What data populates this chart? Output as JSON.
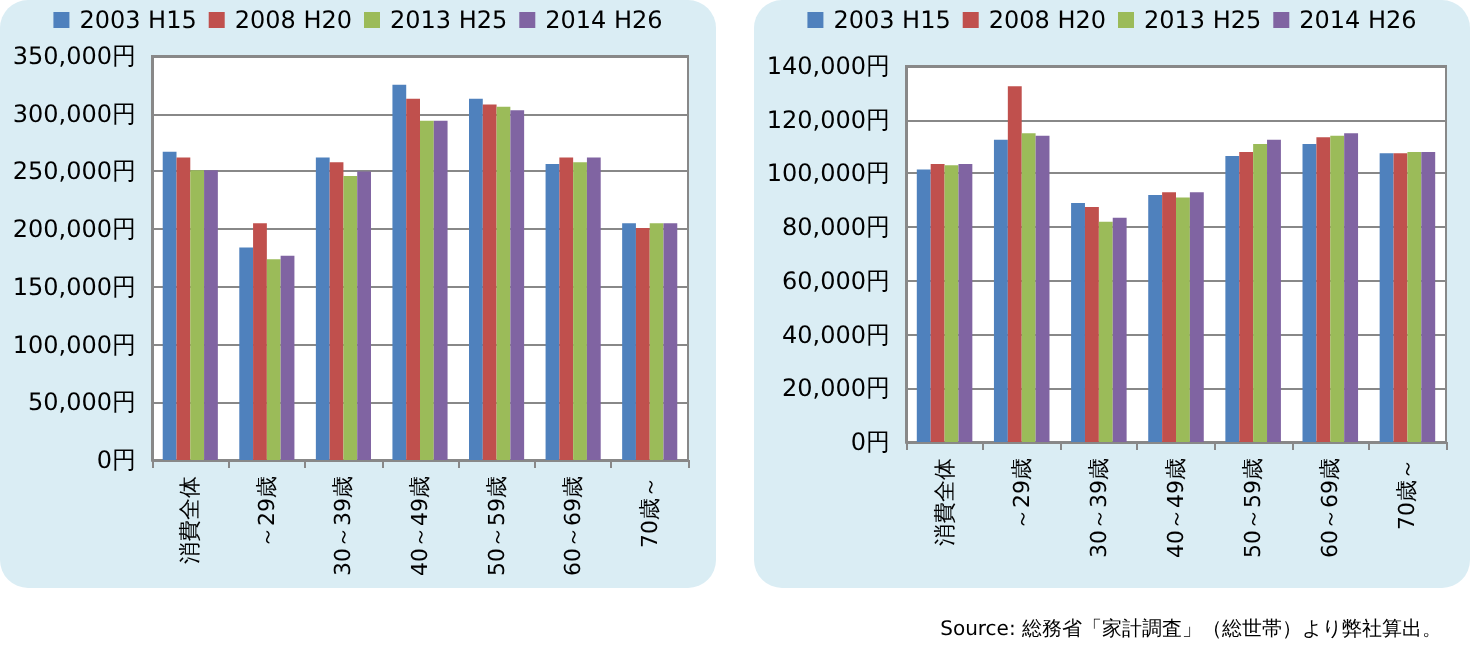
{
  "chart_data": [
    {
      "type": "bar",
      "categories": [
        "消費全体",
        "～29歳",
        "30～39歳",
        "40～49歳",
        "50～59歳",
        "60～69歳",
        "70歳～"
      ],
      "series": [
        {
          "name": "2003 H15",
          "color": "#4f81bd",
          "values": [
            267000,
            184000,
            262000,
            325000,
            313000,
            256500,
            205000
          ]
        },
        {
          "name": "2008 H20",
          "color": "#c0504d",
          "values": [
            262000,
            205000,
            258000,
            313000,
            308000,
            262000,
            201000
          ]
        },
        {
          "name": "2013 H25",
          "color": "#9bbb59",
          "values": [
            251000,
            174000,
            246000,
            294000,
            306000,
            258000,
            205000
          ]
        },
        {
          "name": "2014 H26",
          "color": "#8064a2",
          "values": [
            251000,
            177000,
            250000,
            294000,
            303000,
            262000,
            205000
          ]
        }
      ],
      "ylim": [
        0,
        350000
      ],
      "yticks": [
        {
          "value": 0,
          "label": "0円"
        },
        {
          "value": 50000,
          "label": "50,000円"
        },
        {
          "value": 100000,
          "label": "100,000円"
        },
        {
          "value": 150000,
          "label": "150,000円"
        },
        {
          "value": 200000,
          "label": "200,000円"
        },
        {
          "value": 250000,
          "label": "250,000円"
        },
        {
          "value": 300000,
          "label": "300,000円"
        },
        {
          "value": 350000,
          "label": "350,000円"
        }
      ],
      "grid": "y",
      "legend": "top"
    },
    {
      "type": "bar",
      "categories": [
        "消費全体",
        "～29歳",
        "30～39歳",
        "40～49歳",
        "50～59歳",
        "60～69歳",
        "70歳～"
      ],
      "series": [
        {
          "name": "2003 H15",
          "color": "#4f81bd",
          "values": [
            101500,
            112500,
            89000,
            92000,
            106500,
            111000,
            107500
          ]
        },
        {
          "name": "2008 H20",
          "color": "#c0504d",
          "values": [
            103500,
            132500,
            87500,
            93000,
            108000,
            113500,
            107500
          ]
        },
        {
          "name": "2013 H25",
          "color": "#9bbb59",
          "values": [
            103000,
            115000,
            82000,
            91000,
            111000,
            114000,
            108000
          ]
        },
        {
          "name": "2014 H26",
          "color": "#8064a2",
          "values": [
            103500,
            114000,
            83500,
            93000,
            112500,
            115000,
            108000
          ]
        }
      ],
      "ylim": [
        0,
        140000
      ],
      "yticks": [
        {
          "value": 0,
          "label": "0円"
        },
        {
          "value": 20000,
          "label": "20,000円"
        },
        {
          "value": 40000,
          "label": "40,000円"
        },
        {
          "value": 60000,
          "label": "60,000円"
        },
        {
          "value": 80000,
          "label": "80,000円"
        },
        {
          "value": 100000,
          "label": "100,000円"
        },
        {
          "value": 120000,
          "label": "120,000円"
        },
        {
          "value": 140000,
          "label": "140,000円"
        }
      ],
      "grid": "y",
      "legend": "top",
      "annotations": [
        "Source: 総務省「家計調査」（総世帯）より弊社算出。"
      ]
    }
  ]
}
